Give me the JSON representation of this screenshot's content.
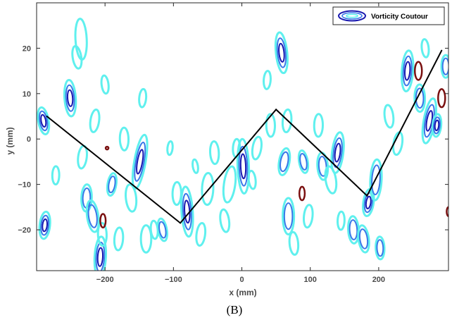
{
  "chart_data": {
    "type": "line",
    "title": "",
    "xlabel": "x (mm)",
    "ylabel": "y (mm)",
    "xlim": [
      -300,
      302
    ],
    "ylim": [
      -29,
      30
    ],
    "xticks": [
      -200,
      -100,
      0,
      100,
      200
    ],
    "yticks": [
      -20,
      -10,
      0,
      10,
      20
    ],
    "grid": false,
    "legend_position": "top-right",
    "legend": [
      "Vorticity Coutour"
    ],
    "caption": "(B)",
    "series": [
      {
        "name": "",
        "color": "#000000",
        "x": [
          -285,
          -90,
          50,
          183,
          292
        ],
        "y": [
          5,
          -18.5,
          6.5,
          -12.5,
          19.5
        ]
      }
    ],
    "contour_colors": {
      "outer": "#5ff0ee",
      "middle": "#3a78e8",
      "inner": "#1818b0",
      "negative": "#7a1010"
    },
    "contours": [
      {
        "x": -290,
        "y": 4,
        "h": 6,
        "level": 3
      },
      {
        "x": -288,
        "y": -19,
        "h": 6,
        "level": 3
      },
      {
        "x": -272,
        "y": -8,
        "h": 4,
        "level": 1
      },
      {
        "x": -251,
        "y": 9,
        "h": 8,
        "level": 3
      },
      {
        "x": -241,
        "y": 18,
        "h": 5,
        "level": 1
      },
      {
        "x": -233,
        "y": -4,
        "h": 5,
        "level": 1
      },
      {
        "x": -227,
        "y": -13,
        "h": 6,
        "level": 2
      },
      {
        "x": -235,
        "y": 22,
        "h": 9,
        "level": 1
      },
      {
        "x": -218,
        "y": -17,
        "h": 7,
        "level": 2
      },
      {
        "x": -215,
        "y": 4,
        "h": 5,
        "level": 1
      },
      {
        "x": -207,
        "y": -26,
        "h": 9,
        "level": 3
      },
      {
        "x": -204,
        "y": -21,
        "h": 5,
        "level": 1
      },
      {
        "x": -200,
        "y": 12,
        "h": 4,
        "level": 1
      },
      {
        "x": -190,
        "y": -10,
        "h": 5,
        "level": 2
      },
      {
        "x": -180,
        "y": -22,
        "h": 5,
        "level": 1
      },
      {
        "x": -172,
        "y": 0,
        "h": 5,
        "level": 1
      },
      {
        "x": -162,
        "y": -13,
        "h": 6,
        "level": 1
      },
      {
        "x": -149,
        "y": -5,
        "h": 12,
        "level": 3
      },
      {
        "x": -145,
        "y": 9,
        "h": 4,
        "level": 1
      },
      {
        "x": -140,
        "y": -22,
        "h": 6,
        "level": 1
      },
      {
        "x": -128,
        "y": -20,
        "h": 4,
        "level": 1
      },
      {
        "x": -116,
        "y": -20,
        "h": 5,
        "level": 2
      },
      {
        "x": -105,
        "y": -2,
        "h": 3,
        "level": 1
      },
      {
        "x": -95,
        "y": -12,
        "h": 5,
        "level": 1
      },
      {
        "x": -80,
        "y": -16,
        "h": 11,
        "level": 3
      },
      {
        "x": -68,
        "y": -6,
        "h": 3,
        "level": 1
      },
      {
        "x": -60,
        "y": -21,
        "h": 5,
        "level": 1
      },
      {
        "x": -50,
        "y": -11,
        "h": 7,
        "level": 1
      },
      {
        "x": -40,
        "y": -3,
        "h": 5,
        "level": 1
      },
      {
        "x": -25,
        "y": -18,
        "h": 5,
        "level": 1
      },
      {
        "x": -18,
        "y": -10,
        "h": 8,
        "level": 1
      },
      {
        "x": -8,
        "y": -2,
        "h": 4,
        "level": 1
      },
      {
        "x": 2,
        "y": -6,
        "h": 12,
        "level": 3
      },
      {
        "x": 15,
        "y": -9,
        "h": 4,
        "level": 1
      },
      {
        "x": 22,
        "y": -2,
        "h": 5,
        "level": 1
      },
      {
        "x": 37,
        "y": 13,
        "h": 4,
        "level": 1
      },
      {
        "x": 42,
        "y": 3,
        "h": 5,
        "level": 1
      },
      {
        "x": 58,
        "y": 19,
        "h": 9,
        "level": 3
      },
      {
        "x": 62,
        "y": -5,
        "h": 6,
        "level": 2
      },
      {
        "x": 66,
        "y": 4,
        "h": 5,
        "level": 1
      },
      {
        "x": 68,
        "y": -17,
        "h": 8,
        "level": 2
      },
      {
        "x": 76,
        "y": -23,
        "h": 5,
        "level": 1
      },
      {
        "x": 90,
        "y": -5,
        "h": 5,
        "level": 2
      },
      {
        "x": 97,
        "y": -17,
        "h": 5,
        "level": 1
      },
      {
        "x": 112,
        "y": 3,
        "h": 5,
        "level": 1
      },
      {
        "x": 118,
        "y": -6,
        "h": 6,
        "level": 2
      },
      {
        "x": 130,
        "y": -9,
        "h": 6,
        "level": 1
      },
      {
        "x": 140,
        "y": -3,
        "h": 9,
        "level": 3
      },
      {
        "x": 145,
        "y": -18,
        "h": 4,
        "level": 1
      },
      {
        "x": 163,
        "y": -20,
        "h": 6,
        "level": 2
      },
      {
        "x": 178,
        "y": -22,
        "h": 6,
        "level": 2
      },
      {
        "x": 185,
        "y": -14,
        "h": 6,
        "level": 3
      },
      {
        "x": 196,
        "y": -9,
        "h": 9,
        "level": 2
      },
      {
        "x": 202,
        "y": -24,
        "h": 5,
        "level": 2
      },
      {
        "x": 215,
        "y": 5,
        "h": 5,
        "level": 1
      },
      {
        "x": 228,
        "y": -1,
        "h": 5,
        "level": 1
      },
      {
        "x": 242,
        "y": 15,
        "h": 9,
        "level": 3
      },
      {
        "x": 260,
        "y": 9,
        "h": 6,
        "level": 2
      },
      {
        "x": 268,
        "y": 20,
        "h": 4,
        "level": 1
      },
      {
        "x": 274,
        "y": 4,
        "h": 10,
        "level": 3
      },
      {
        "x": 285,
        "y": 3,
        "h": 5,
        "level": 3
      },
      {
        "x": 298,
        "y": 16,
        "h": 5,
        "level": 2
      }
    ],
    "negative_contours": [
      {
        "x": -203,
        "y": -18,
        "h": 3
      },
      {
        "x": -197,
        "y": -2,
        "h": 0.6
      },
      {
        "x": 88,
        "y": -12,
        "h": 3
      },
      {
        "x": 258,
        "y": 15,
        "h": 4
      },
      {
        "x": 292,
        "y": 9,
        "h": 4
      },
      {
        "x": 302,
        "y": -16,
        "h": 2
      }
    ]
  }
}
